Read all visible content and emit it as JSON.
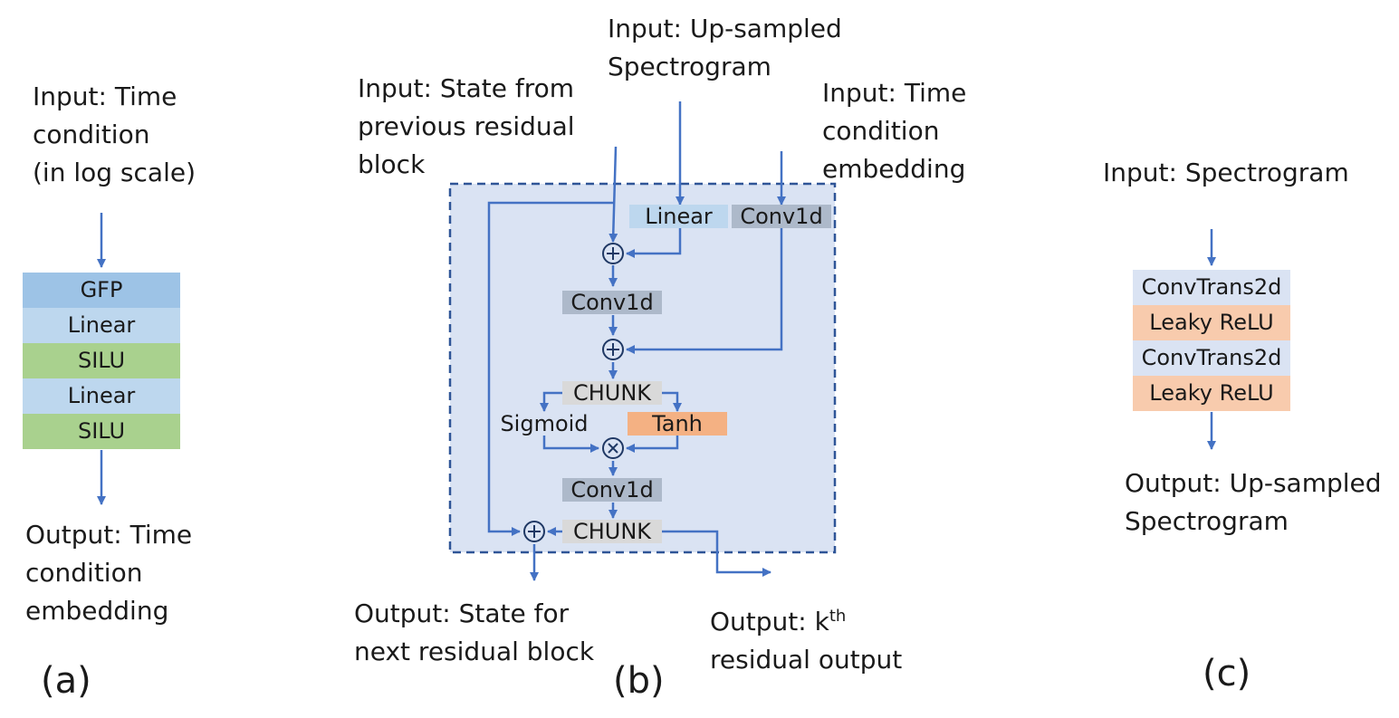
{
  "panel_a": {
    "input_lines": [
      "Input: Time",
      "condition",
      "(in log scale)"
    ],
    "blocks": [
      "GFP",
      "Linear",
      "SILU",
      "Linear",
      "SILU"
    ],
    "output_lines": [
      "Output: Time",
      "condition",
      "embedding"
    ],
    "caption": "(a)"
  },
  "panel_b": {
    "input_state_lines": [
      "Input: State from",
      "previous residual",
      "block"
    ],
    "input_spec_lines": [
      "Input: Up-sampled",
      "Spectrogram"
    ],
    "input_time_lines": [
      "Input: Time",
      "condition",
      "embedding"
    ],
    "blocks": {
      "linear": "Linear",
      "conv1d_top": "Conv1d",
      "conv1d_mid": "Conv1d",
      "chunk_top": "CHUNK",
      "sigmoid": "Sigmoid",
      "tanh": "Tanh",
      "conv1d_bottom": "Conv1d",
      "chunk_bottom": "CHUNK"
    },
    "output_state_lines": [
      "Output: State for",
      "next residual block"
    ],
    "output_residual": {
      "prefix": "Output: k",
      "sup": "th",
      "line2": "residual output"
    },
    "caption": "(b)"
  },
  "panel_c": {
    "input_line": "Input: Spectrogram",
    "blocks": [
      "ConvTrans2d",
      "Leaky ReLU",
      "ConvTrans2d",
      "Leaky ReLU"
    ],
    "output_lines": [
      "Output: Up-sampled",
      "Spectrogram"
    ],
    "caption": "(c)"
  },
  "colors": {
    "arrow": "#4472c4",
    "gfp": "#9dc3e6",
    "linear": "#bdd7ee",
    "silu": "#a9d18e",
    "conv1d": "#adb9ca",
    "chunk": "#d9d9d9",
    "sigmoid": "#dae3f3",
    "tanh": "#f4b183",
    "convtrans": "#dae3f3",
    "leaky": "#f8cbad",
    "residual_bg": "#dae3f3",
    "residual_border": "#2f5597"
  }
}
